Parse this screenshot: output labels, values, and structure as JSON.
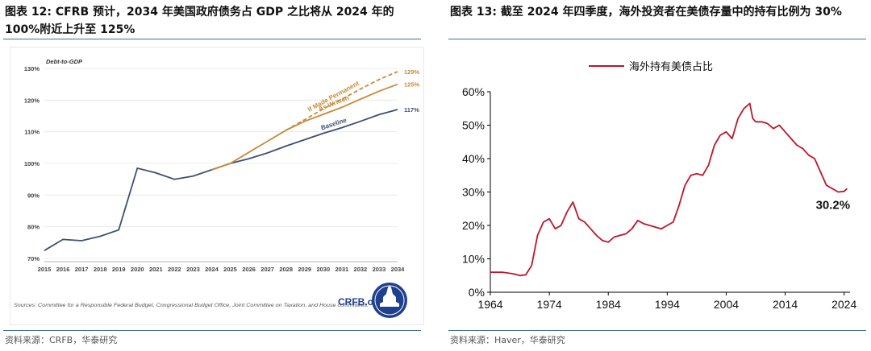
{
  "left": {
    "title": "图表 12:   CFRB 预计，2034 年美国政府债务占 GDP 之比将从 2024 年的 100%附近上升至 125%",
    "source": "资料来源：CRFB，华泰研究",
    "chart_data": {
      "type": "line",
      "title": "Debt-to-GDP",
      "x": [
        2015,
        2016,
        2017,
        2018,
        2019,
        2020,
        2021,
        2022,
        2023,
        2024,
        2025,
        2026,
        2027,
        2028,
        2029,
        2030,
        2031,
        2032,
        2033,
        2034
      ],
      "ylim": [
        70,
        130
      ],
      "yticks": [
        70,
        80,
        90,
        100,
        110,
        120,
        130
      ],
      "ytick_labels": [
        "70%",
        "80%",
        "90%",
        "100%",
        "110%",
        "120%",
        "130%"
      ],
      "series": [
        {
          "name": "Baseline",
          "color": "#3d4f73",
          "style": "solid",
          "x": [
            2015,
            2016,
            2017,
            2018,
            2019,
            2020,
            2021,
            2022,
            2023,
            2024,
            2025,
            2026,
            2027,
            2028,
            2029,
            2030,
            2031,
            2032,
            2033,
            2034
          ],
          "values": [
            72.5,
            76,
            75.6,
            77,
            79,
            98.5,
            97,
            95,
            96,
            98,
            100,
            101.5,
            103.3,
            105.5,
            107.5,
            109.5,
            111.3,
            113.3,
            115.4,
            117
          ]
        },
        {
          "name": "As Written",
          "color": "#c8893a",
          "style": "solid",
          "x": [
            2024,
            2025,
            2026,
            2027,
            2028,
            2029,
            2030,
            2031,
            2032,
            2033,
            2034
          ],
          "values": [
            98,
            100,
            103.5,
            107,
            110.5,
            113.3,
            115.5,
            117.7,
            120.3,
            122.8,
            125
          ]
        },
        {
          "name": "If Made Permanent",
          "color": "#c8893a",
          "style": "dashed",
          "x": [
            2028,
            2029,
            2030,
            2031,
            2032,
            2033,
            2034
          ],
          "values": [
            110.5,
            113.8,
            117.2,
            120.3,
            123.5,
            126.5,
            129
          ]
        }
      ],
      "end_labels": [
        "129%",
        "125%",
        "117%"
      ],
      "notes": "Sources: Committee for a Responsible Federal Budget, Congressional Budget Office, Joint Committee on Taxation, and House committees.",
      "logo_text": "CRFB.org"
    }
  },
  "right": {
    "title": "图表 13:   截至 2024 年四季度，海外投资者在美债存量中的持有比例为 30%",
    "source": "资料来源：Haver，华泰研究",
    "chart_data": {
      "type": "line",
      "legend": "海外持有美债占比",
      "legend_position": "top-center",
      "xlim": [
        1964,
        2025
      ],
      "xticks": [
        1964,
        1974,
        1984,
        1994,
        2004,
        2014,
        2024
      ],
      "ylim": [
        0,
        60
      ],
      "yticks": [
        0,
        10,
        20,
        30,
        40,
        50,
        60
      ],
      "ytick_labels": [
        "0%",
        "10%",
        "20%",
        "30%",
        "40%",
        "50%",
        "60%"
      ],
      "series": [
        {
          "name": "海外持有美债占比",
          "color": "#c0152a",
          "x": [
            1964,
            1966,
            1968,
            1969,
            1970,
            1971,
            1972,
            1973,
            1974,
            1975,
            1976,
            1977,
            1978,
            1979,
            1980,
            1981,
            1982,
            1983,
            1984,
            1985,
            1986,
            1987,
            1988,
            1989,
            1990,
            1991,
            1992,
            1993,
            1994,
            1995,
            1996,
            1997,
            1998,
            1999,
            2000,
            2001,
            2002,
            2003,
            2004,
            2005,
            2006,
            2007,
            2008,
            2008.5,
            2009,
            2010,
            2011,
            2012,
            2013,
            2014,
            2015,
            2016,
            2017,
            2018,
            2019,
            2020,
            2021,
            2022,
            2023,
            2024,
            2024.5
          ],
          "values": [
            6,
            6,
            5.5,
            5,
            5.2,
            8,
            17,
            21,
            22,
            19,
            20,
            24,
            27,
            22,
            21,
            19,
            17,
            15.5,
            15,
            16.5,
            17,
            17.5,
            19,
            21.5,
            20.5,
            20,
            19.5,
            19,
            20,
            21,
            26,
            32,
            35,
            35.5,
            35,
            38,
            44,
            47,
            48,
            46,
            52,
            55,
            56.5,
            52,
            51,
            51,
            50.5,
            49,
            50,
            48,
            46,
            44,
            43,
            41,
            40,
            36,
            32,
            31,
            30,
            30.2,
            31
          ]
        }
      ],
      "annotation": "30.2%"
    }
  }
}
